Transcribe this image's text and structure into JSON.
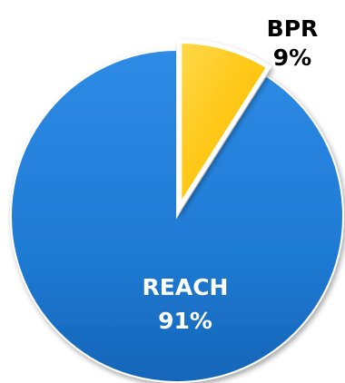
{
  "chart_data": {
    "type": "pie",
    "exploded": [
      "BPR"
    ],
    "slices": [
      {
        "label": "BPR",
        "value": 9,
        "display": "9%",
        "color": "#FFC000",
        "label_color": "#000000"
      },
      {
        "label": "REACH",
        "value": 91,
        "display": "91%",
        "color": "#1F7BD4",
        "label_color": "#FFFFFF"
      }
    ]
  }
}
